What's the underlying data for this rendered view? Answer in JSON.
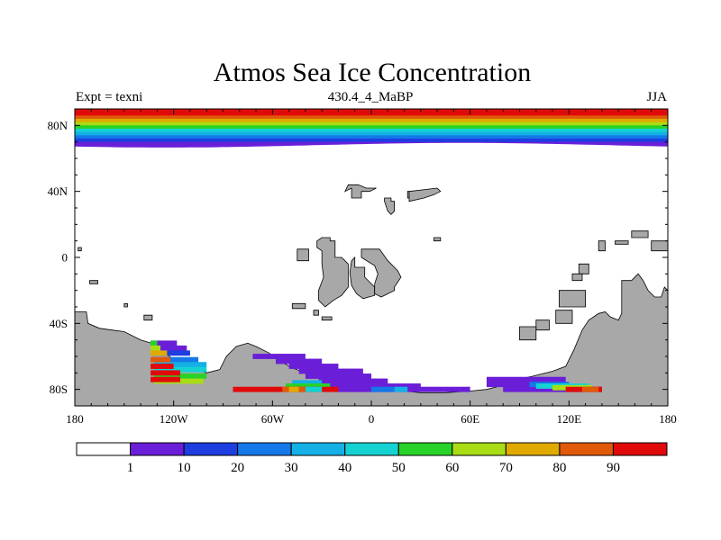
{
  "chart_data": {
    "type": "heatmap",
    "title": "Atmos Sea Ice Concentration",
    "subtitle": "430.4_4_MaBP",
    "left_label": "Expt = texni",
    "right_label": "JJA",
    "xlim": [
      -180,
      180
    ],
    "ylim": [
      -90,
      90
    ],
    "x_ticks": [
      {
        "value": -180,
        "label": "180"
      },
      {
        "value": -120,
        "label": "120W"
      },
      {
        "value": -60,
        "label": "60W"
      },
      {
        "value": 0,
        "label": "0"
      },
      {
        "value": 60,
        "label": "60E"
      },
      {
        "value": 120,
        "label": "120E"
      },
      {
        "value": 180,
        "label": "180"
      }
    ],
    "y_ticks": [
      {
        "value": 80,
        "label": "80N"
      },
      {
        "value": 40,
        "label": "40N"
      },
      {
        "value": 0,
        "label": "0"
      },
      {
        "value": -40,
        "label": "40S"
      },
      {
        "value": -80,
        "label": "80S"
      }
    ],
    "levels": [
      1,
      10,
      20,
      30,
      40,
      50,
      60,
      70,
      80,
      90
    ],
    "level_labels": [
      "1",
      "10",
      "20",
      "30",
      "40",
      "50",
      "60",
      "70",
      "80",
      "90"
    ],
    "colors": [
      "#ffffff",
      "#6a1ed8",
      "#1e3ee0",
      "#1478e8",
      "#14b0e6",
      "#14d2d2",
      "#28d228",
      "#a8dc14",
      "#e0aa00",
      "#e05a0a",
      "#e00a0a"
    ],
    "land_color": "#a8a8a8",
    "arctic_ice": {
      "lat_step": 2,
      "values": [
        98,
        90,
        85,
        75,
        65,
        55,
        45,
        35,
        25,
        15,
        5
      ]
    },
    "land_polygons": [
      [
        [
          -180,
          -90
        ],
        [
          -180,
          -33
        ],
        [
          -173,
          -33
        ],
        [
          -172,
          -40
        ],
        [
          -165,
          -43
        ],
        [
          -150,
          -45
        ],
        [
          -140,
          -50
        ],
        [
          -130,
          -53
        ],
        [
          -125,
          -58
        ],
        [
          -120,
          -62
        ],
        [
          -112,
          -66
        ],
        [
          -100,
          -70
        ],
        [
          -92,
          -68
        ],
        [
          -88,
          -60
        ],
        [
          -82,
          -54
        ],
        [
          -75,
          -52
        ],
        [
          -70,
          -54
        ],
        [
          -62,
          -58
        ],
        [
          -55,
          -63
        ],
        [
          -48,
          -67
        ],
        [
          -40,
          -70
        ],
        [
          -30,
          -73
        ],
        [
          -20,
          -76
        ],
        [
          -10,
          -80
        ],
        [
          0,
          -81
        ],
        [
          10,
          -81
        ],
        [
          20,
          -81
        ],
        [
          30,
          -82
        ],
        [
          45,
          -82
        ],
        [
          60,
          -81
        ],
        [
          70,
          -80
        ],
        [
          78,
          -78
        ],
        [
          88,
          -74
        ],
        [
          98,
          -72
        ],
        [
          110,
          -69
        ],
        [
          118,
          -66
        ],
        [
          123,
          -56
        ],
        [
          128,
          -44
        ],
        [
          132,
          -38
        ],
        [
          138,
          -34
        ],
        [
          142,
          -33
        ],
        [
          145,
          -36
        ],
        [
          150,
          -38
        ],
        [
          152,
          -34
        ],
        [
          152,
          -14
        ],
        [
          158,
          -14
        ],
        [
          162,
          -10
        ],
        [
          165,
          -14
        ],
        [
          168,
          -20
        ],
        [
          172,
          -24
        ],
        [
          176,
          -24
        ],
        [
          178,
          -18
        ],
        [
          180,
          -20
        ],
        [
          180,
          -90
        ]
      ],
      [
        [
          -150,
          -28
        ],
        [
          -148,
          -28
        ],
        [
          -148,
          -30
        ],
        [
          -150,
          -30
        ]
      ],
      [
        [
          -171,
          -14
        ],
        [
          -166,
          -14
        ],
        [
          -166,
          -16
        ],
        [
          -171,
          -16
        ]
      ],
      [
        [
          -138,
          -35
        ],
        [
          -133,
          -35
        ],
        [
          -133,
          -38
        ],
        [
          -138,
          -38
        ]
      ],
      [
        [
          -178,
          6
        ],
        [
          -176,
          6
        ],
        [
          -176,
          4
        ],
        [
          -178,
          4
        ]
      ],
      [
        [
          -45,
          5
        ],
        [
          -38,
          5
        ],
        [
          -38,
          -2
        ],
        [
          -45,
          -2
        ]
      ],
      [
        [
          -30,
          -20
        ],
        [
          -27,
          -20
        ],
        [
          -27,
          -24
        ],
        [
          -30,
          -24
        ]
      ],
      [
        [
          -48,
          -28
        ],
        [
          -40,
          -28
        ],
        [
          -40,
          -31
        ],
        [
          -48,
          -31
        ]
      ],
      [
        [
          -35,
          -32
        ],
        [
          -32,
          -32
        ],
        [
          -32,
          -35
        ],
        [
          -35,
          -35
        ]
      ],
      [
        [
          -30,
          -36
        ],
        [
          -24,
          -36
        ],
        [
          -24,
          -38
        ],
        [
          -30,
          -38
        ]
      ],
      [
        [
          -30,
          12
        ],
        [
          -25,
          12
        ],
        [
          -25,
          10
        ],
        [
          -22,
          10
        ],
        [
          -22,
          0
        ],
        [
          -18,
          0
        ],
        [
          -14,
          -4
        ],
        [
          -14,
          -18
        ],
        [
          -18,
          -23
        ],
        [
          -23,
          -26
        ],
        [
          -28,
          -30
        ],
        [
          -32,
          -26
        ],
        [
          -32,
          -20
        ],
        [
          -29,
          -12
        ],
        [
          -30,
          -4
        ],
        [
          -30,
          4
        ],
        [
          -33,
          6
        ],
        [
          -33,
          10
        ],
        [
          -30,
          12
        ]
      ],
      [
        [
          -10,
          0
        ],
        [
          -10,
          -6
        ],
        [
          -4,
          -6
        ],
        [
          -4,
          -12
        ],
        [
          2,
          -18
        ],
        [
          2,
          -23
        ],
        [
          -5,
          -25
        ],
        [
          -9,
          -22
        ],
        [
          -12,
          -17
        ],
        [
          -13,
          -9
        ],
        [
          -12,
          -2
        ],
        [
          -10,
          0
        ]
      ],
      [
        [
          -6,
          5
        ],
        [
          5,
          5
        ],
        [
          10,
          -2
        ],
        [
          16,
          -8
        ],
        [
          18,
          -12
        ],
        [
          14,
          -18
        ],
        [
          14,
          -20
        ],
        [
          6,
          -24
        ],
        [
          2,
          -22
        ],
        [
          2,
          -16
        ],
        [
          4,
          -10
        ],
        [
          2,
          -5
        ],
        [
          -6,
          0
        ]
      ],
      [
        [
          -16,
          40
        ],
        [
          -12,
          42
        ],
        [
          -12,
          36
        ],
        [
          -6,
          36
        ],
        [
          -6,
          40
        ],
        [
          -1,
          40
        ],
        [
          3,
          42
        ],
        [
          -3,
          42
        ],
        [
          -8,
          44
        ],
        [
          -14,
          44
        ],
        [
          -16,
          40
        ]
      ],
      [
        [
          8,
          36
        ],
        [
          12,
          36
        ],
        [
          12,
          34
        ],
        [
          14,
          34
        ],
        [
          14,
          28
        ],
        [
          12,
          26
        ],
        [
          10,
          28
        ],
        [
          8,
          34
        ]
      ],
      [
        [
          22,
          40
        ],
        [
          24,
          40
        ],
        [
          24,
          36
        ],
        [
          22,
          36
        ]
      ],
      [
        [
          23,
          40
        ],
        [
          40,
          42
        ],
        [
          42,
          40
        ],
        [
          38,
          38
        ],
        [
          32,
          36
        ],
        [
          23,
          34
        ]
      ],
      [
        [
          38,
          12
        ],
        [
          42,
          12
        ],
        [
          42,
          10
        ],
        [
          38,
          10
        ]
      ],
      [
        [
          126,
          -4
        ],
        [
          132,
          -4
        ],
        [
          132,
          -10
        ],
        [
          126,
          -10
        ]
      ],
      [
        [
          122,
          -10
        ],
        [
          128,
          -10
        ],
        [
          128,
          -14
        ],
        [
          122,
          -14
        ]
      ],
      [
        [
          114,
          -20
        ],
        [
          130,
          -20
        ],
        [
          130,
          -30
        ],
        [
          114,
          -30
        ]
      ],
      [
        [
          112,
          -32
        ],
        [
          122,
          -32
        ],
        [
          122,
          -40
        ],
        [
          112,
          -40
        ]
      ],
      [
        [
          100,
          -38
        ],
        [
          108,
          -38
        ],
        [
          108,
          -44
        ],
        [
          100,
          -44
        ]
      ],
      [
        [
          90,
          -42
        ],
        [
          100,
          -42
        ],
        [
          100,
          -50
        ],
        [
          90,
          -50
        ]
      ],
      [
        [
          138,
          10
        ],
        [
          142,
          10
        ],
        [
          142,
          4
        ],
        [
          138,
          4
        ]
      ],
      [
        [
          148,
          10
        ],
        [
          156,
          10
        ],
        [
          156,
          8
        ],
        [
          148,
          8
        ]
      ],
      [
        [
          158,
          16
        ],
        [
          168,
          16
        ],
        [
          168,
          12
        ],
        [
          158,
          12
        ]
      ],
      [
        [
          170,
          10
        ],
        [
          180,
          10
        ],
        [
          180,
          4
        ],
        [
          170,
          4
        ]
      ]
    ],
    "southern_ice_patches": [
      {
        "lat": -52,
        "lon": [
          -134,
          -118
        ],
        "c": 1
      },
      {
        "lat": -55,
        "lon": [
          -133,
          -112
        ],
        "c": 1
      },
      {
        "lat": -58,
        "lon": [
          -133,
          -110
        ],
        "c": 2
      },
      {
        "lat": -62,
        "lon": [
          -133,
          -105
        ],
        "c": 3
      },
      {
        "lat": -65,
        "lon": [
          -132,
          -100
        ],
        "c": 4
      },
      {
        "lat": -68,
        "lon": [
          -132,
          -100
        ],
        "c": 5
      },
      {
        "lat": -72,
        "lon": [
          -132,
          -100
        ],
        "c": 6
      },
      {
        "lat": -75,
        "lon": [
          -132,
          -102
        ],
        "c": 7
      },
      {
        "lat": -52,
        "lon": [
          -134,
          -130
        ],
        "c": 6
      },
      {
        "lat": -55,
        "lon": [
          -134,
          -128
        ],
        "c": 7
      },
      {
        "lat": -58,
        "lon": [
          -134,
          -124
        ],
        "c": 8
      },
      {
        "lat": -62,
        "lon": [
          -134,
          -122
        ],
        "c": 9
      },
      {
        "lat": -66,
        "lon": [
          -134,
          -120
        ],
        "c": 10
      },
      {
        "lat": -70,
        "lon": [
          -134,
          -116
        ],
        "c": 10
      },
      {
        "lat": -74,
        "lon": [
          -134,
          -116
        ],
        "c": 10
      },
      {
        "lat": -60,
        "lon": [
          -72,
          -40
        ],
        "c": 1
      },
      {
        "lat": -63,
        "lon": [
          -58,
          -30
        ],
        "c": 1
      },
      {
        "lat": -66,
        "lon": [
          -50,
          -20
        ],
        "c": 1
      },
      {
        "lat": -69,
        "lon": [
          -44,
          -5
        ],
        "c": 1
      },
      {
        "lat": -72,
        "lon": [
          -40,
          0
        ],
        "c": 1
      },
      {
        "lat": -75,
        "lon": [
          -32,
          10
        ],
        "c": 1
      },
      {
        "lat": -78,
        "lon": [
          -26,
          30
        ],
        "c": 1
      },
      {
        "lat": -80,
        "lon": [
          -20,
          60
        ],
        "c": 1
      },
      {
        "lat": -74,
        "lon": [
          70,
          118
        ],
        "c": 1
      },
      {
        "lat": -77,
        "lon": [
          70,
          118
        ],
        "c": 1
      },
      {
        "lat": -80,
        "lon": [
          80,
          140
        ],
        "c": 1
      },
      {
        "lat": -76,
        "lon": [
          -48,
          -30
        ],
        "c": 4
      },
      {
        "lat": -78,
        "lon": [
          -52,
          -25
        ],
        "c": 6
      },
      {
        "lat": -80,
        "lon": [
          -84,
          -20
        ],
        "c": 10
      },
      {
        "lat": -80,
        "lon": [
          -54,
          -40
        ],
        "c": 9
      },
      {
        "lat": -80,
        "lon": [
          -50,
          -44
        ],
        "c": 8
      },
      {
        "lat": -80,
        "lon": [
          -40,
          -30
        ],
        "c": 5
      },
      {
        "lat": -80,
        "lon": [
          0,
          14
        ],
        "c": 3
      },
      {
        "lat": -80,
        "lon": [
          14,
          22
        ],
        "c": 4
      },
      {
        "lat": -77,
        "lon": [
          96,
          120
        ],
        "c": 3
      },
      {
        "lat": -78,
        "lon": [
          100,
          132
        ],
        "c": 5
      },
      {
        "lat": -79,
        "lon": [
          110,
          134
        ],
        "c": 7
      },
      {
        "lat": -80,
        "lon": [
          118,
          140
        ],
        "c": 10
      },
      {
        "lat": -80,
        "lon": [
          128,
          138
        ],
        "c": 9
      }
    ]
  }
}
